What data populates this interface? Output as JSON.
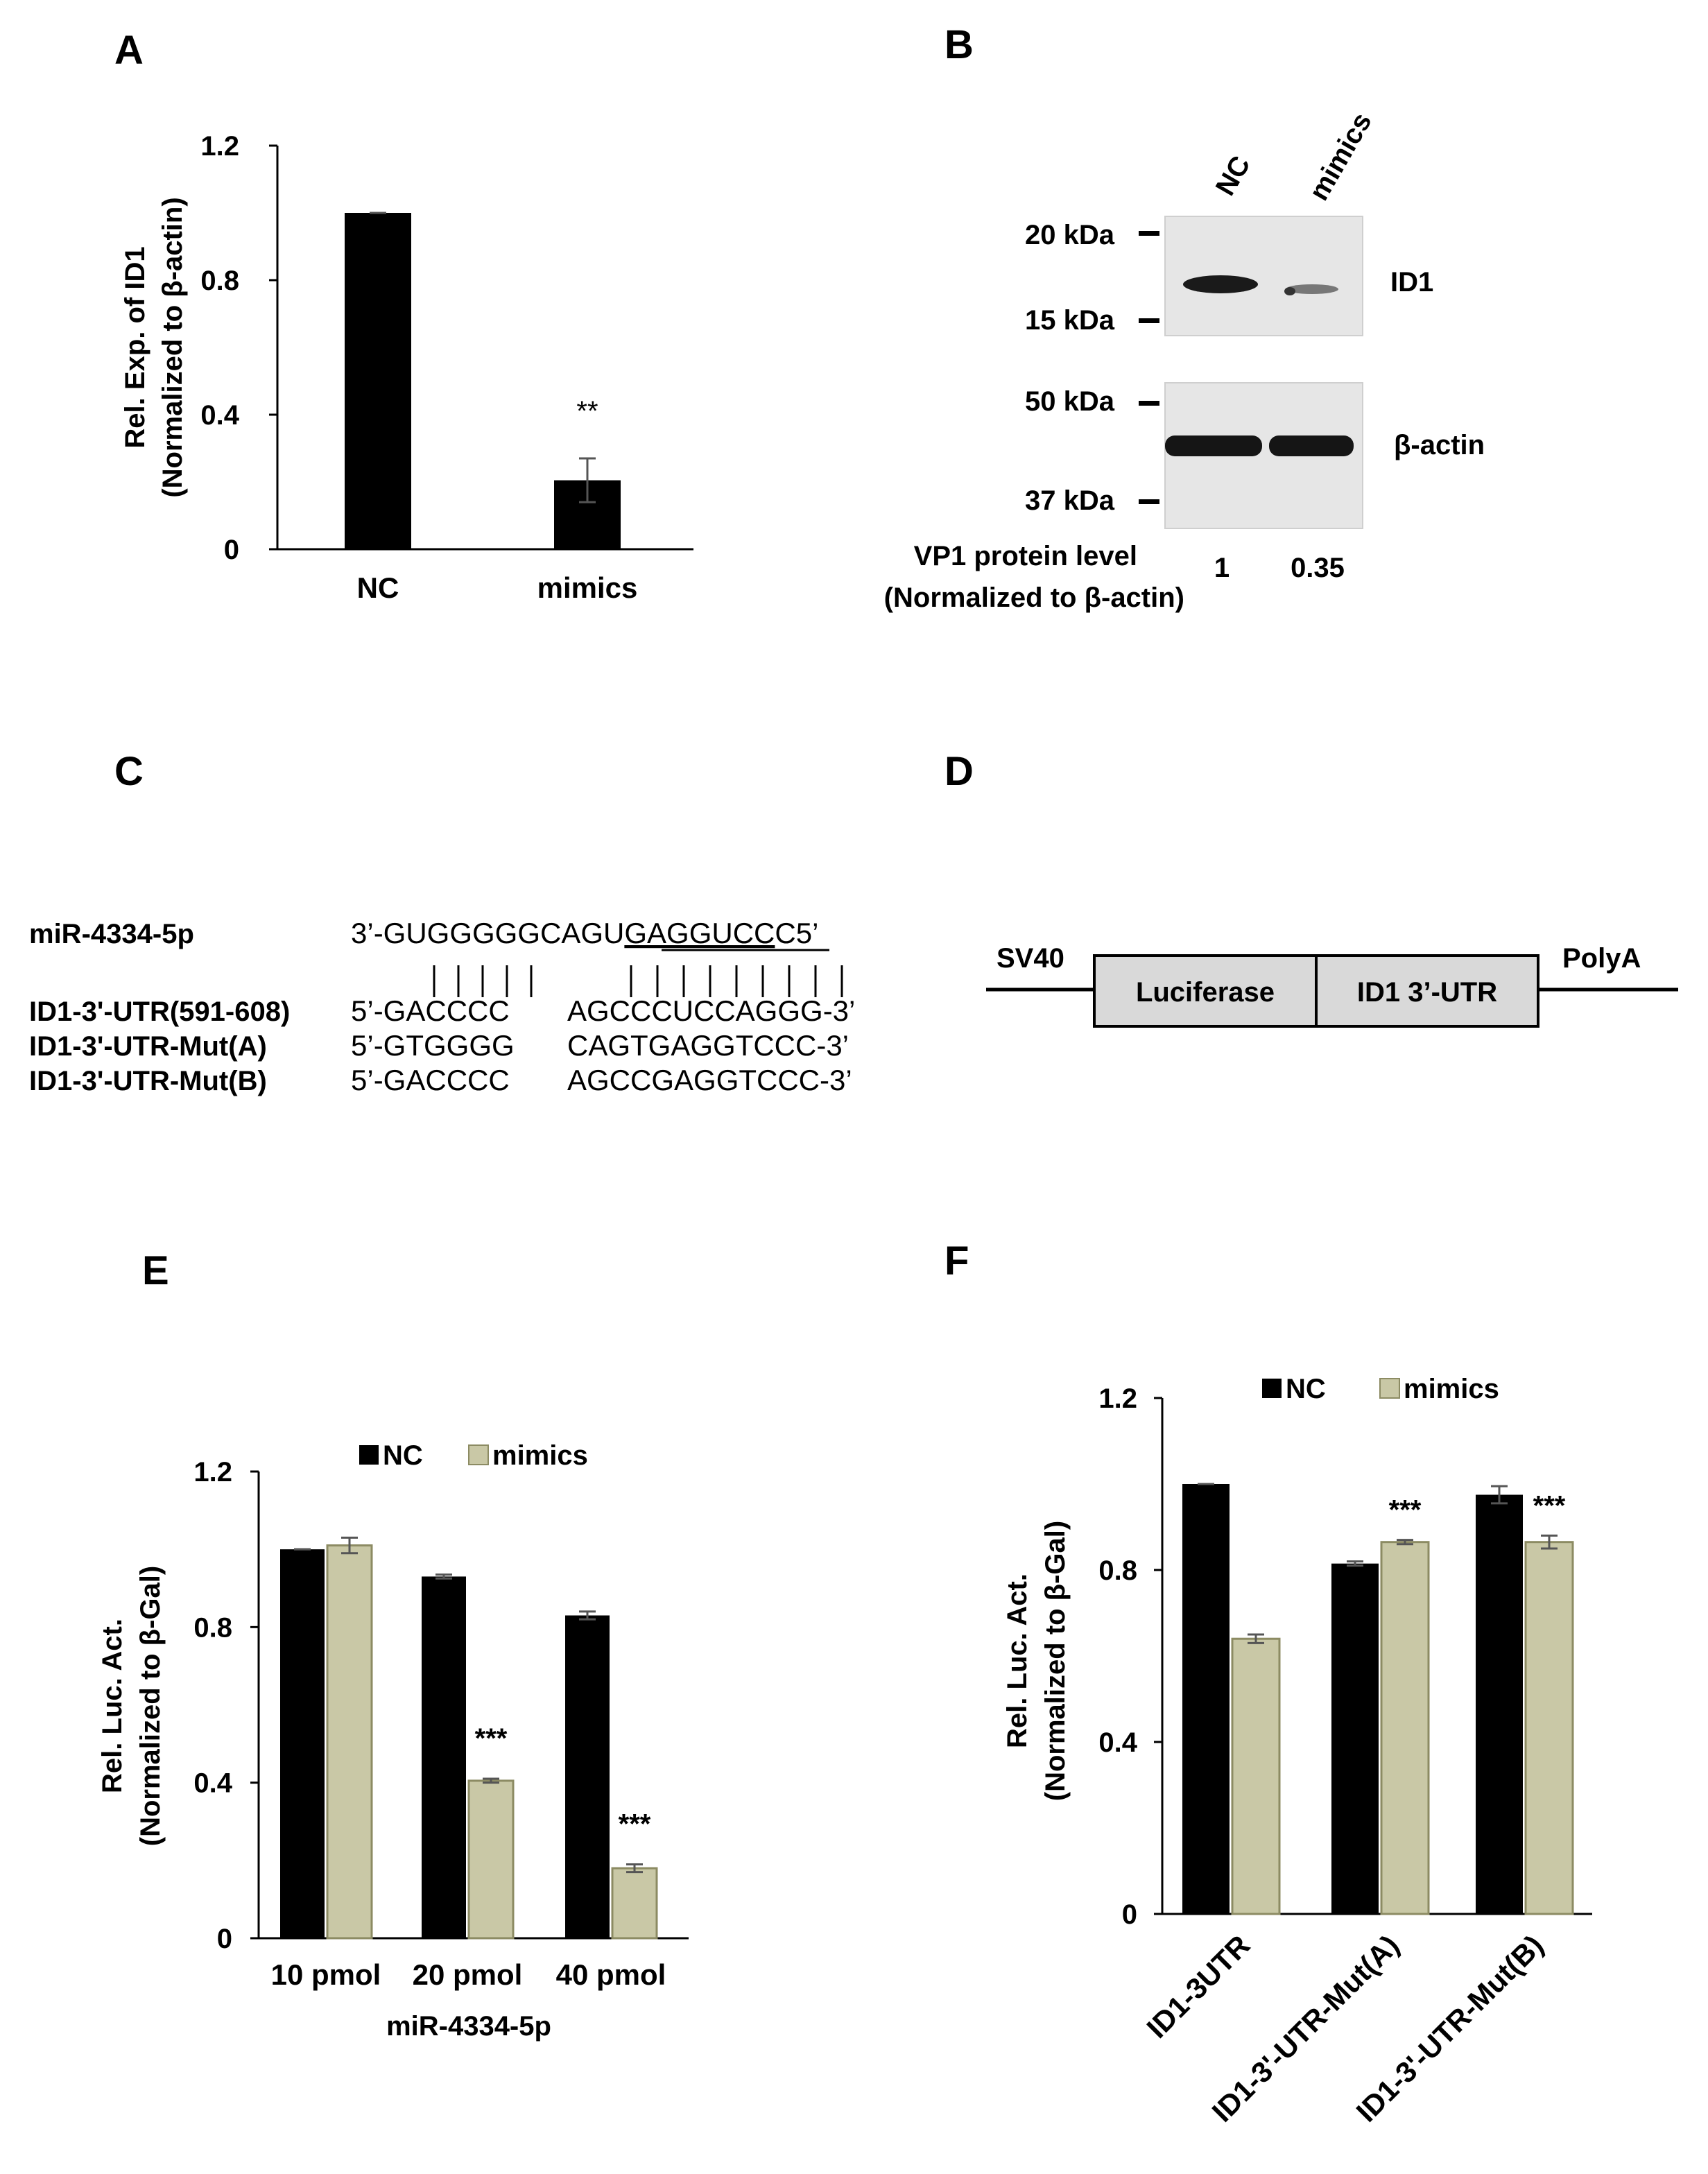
{
  "panels": {
    "a": "A",
    "b": "B",
    "c": "C",
    "d": "D",
    "e": "E",
    "f": "F"
  },
  "colors": {
    "nc": "#000000",
    "mimics": "#c9c8a6",
    "mimics_edge": "#8c8b63",
    "error": "#555555"
  },
  "chart_data": [
    {
      "panel": "A",
      "type": "bar",
      "categories": [
        "NC",
        "mimics"
      ],
      "series": [
        {
          "values": [
            1.0,
            0.205
          ],
          "error": [
            0.0,
            0.065
          ]
        }
      ],
      "ylabel_line1": "Rel. Exp. of ID1",
      "ylabel_line2": "(Normalized to β-actin)",
      "ylim": [
        0,
        1.2
      ],
      "yticks": [
        "0",
        "0.4",
        "0.8",
        "1.2"
      ],
      "annotations": [
        {
          "category": "mimics",
          "text": "**"
        }
      ],
      "legend": "none"
    },
    {
      "panel": "E",
      "type": "bar",
      "categories": [
        "10 pmol",
        "20 pmol",
        "40 pmol"
      ],
      "xlabel": "miR-4334-5p",
      "series": [
        {
          "name": "NC",
          "values": [
            1.0,
            0.93,
            0.83
          ],
          "error": [
            0.0,
            0.005,
            0.01
          ]
        },
        {
          "name": "mimics",
          "values": [
            1.01,
            0.405,
            0.18
          ],
          "error": [
            0.02,
            0.005,
            0.01
          ]
        }
      ],
      "ylabel_line1": "Rel. Luc. Act.",
      "ylabel_line2": "(Normalized to β-Gal)",
      "ylim": [
        0,
        1.2
      ],
      "yticks": [
        "0",
        "0.4",
        "0.8",
        "1.2"
      ],
      "annotations": [
        {
          "category": "20 pmol",
          "text": "***"
        },
        {
          "category": "40 pmol",
          "text": "***"
        }
      ],
      "legend": "top"
    },
    {
      "panel": "F",
      "type": "bar",
      "categories": [
        "ID1-3UTR",
        "ID1-3'-UTR-Mut(A)",
        "ID1-3'-UTR-Mut(B)"
      ],
      "series": [
        {
          "name": "NC",
          "values": [
            1.0,
            0.815,
            0.975
          ],
          "error": [
            0.0,
            0.005,
            0.02
          ]
        },
        {
          "name": "mimics",
          "values": [
            0.64,
            0.865,
            0.865
          ],
          "error": [
            0.01,
            0.005,
            0.015
          ]
        }
      ],
      "ylabel_line1": "Rel. Luc. Act.",
      "ylabel_line2": "(Normalized to β-Gal)",
      "ylim": [
        0,
        1.2
      ],
      "yticks": [
        "0",
        "0.4",
        "0.8",
        "1.2"
      ],
      "annotations": [
        {
          "category": "ID1-3'-UTR-Mut(A)",
          "text": "***"
        },
        {
          "category": "ID1-3'-UTR-Mut(B)",
          "text": "***"
        }
      ],
      "legend": "top"
    }
  ],
  "blot": {
    "lanes": [
      "NC",
      "mimics"
    ],
    "markers": [
      "20 kDa",
      "15 kDa",
      "50 kDa",
      "37 kDa"
    ],
    "proteins": [
      "ID1",
      "β-actin"
    ],
    "quant_label_line1": "VP1 protein level",
    "quant_label_line2": "(Normalized to β-actin)",
    "quant_values": [
      "1",
      "0.35"
    ]
  },
  "sequences": {
    "mir_name": "miR-4334-5p",
    "mir_seq_prefix": "3’-GUGGGGGCAGU",
    "mir_seq_seed": "GAGGUCC",
    "mir_seq_suffix": "C5’",
    "rows": [
      {
        "name": "ID1-3'-UTR(591-608)",
        "left": "5’-GACCCC",
        "right": "AGCCCUCCAGGG-3’"
      },
      {
        "name": "ID1-3'-UTR-Mut(A)",
        "left": "5’-GTGGGG",
        "right": "CAGTGAGGTCCC-3’"
      },
      {
        "name": "ID1-3'-UTR-Mut(B)",
        "left": "5’-GACCCC",
        "right": "AGCCGAGGTCCC-3’"
      }
    ]
  },
  "construct": {
    "promoter": "SV40",
    "box1": "Luciferase",
    "box2": "ID1 3’-UTR",
    "tail": "PolyA"
  }
}
